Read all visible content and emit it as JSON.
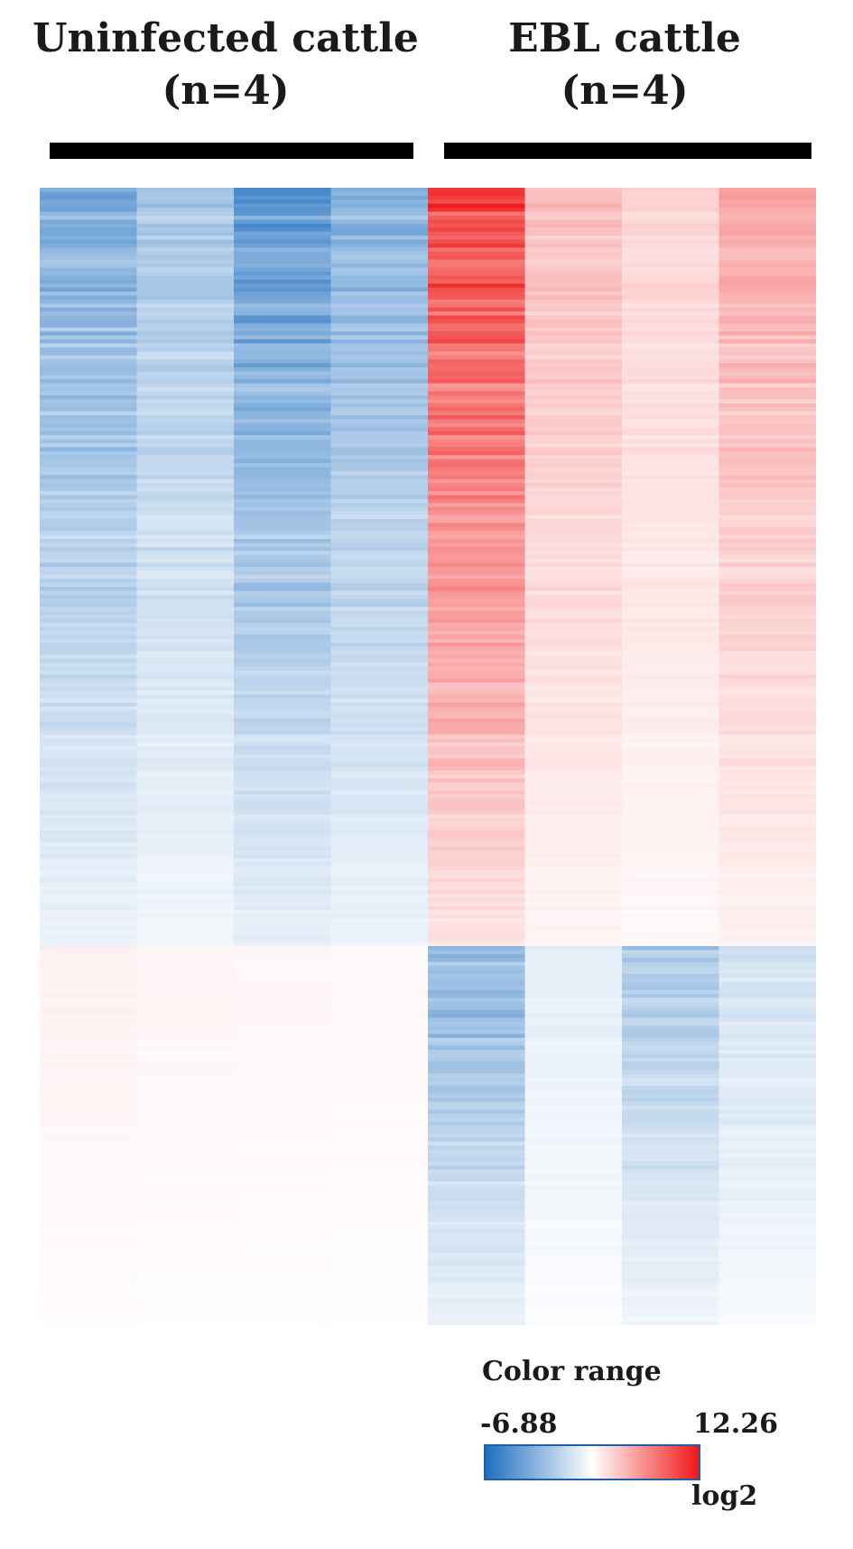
{
  "chart_data": {
    "type": "heatmap",
    "groups": [
      {
        "label_line1": "Uninfected cattle",
        "label_line2": "(n=4)",
        "columns": 4
      },
      {
        "label_line1": "EBL cattle",
        "label_line2": "(n=4)",
        "columns": 4
      }
    ],
    "clusters": [
      {
        "rows": 190,
        "column_means": [
          -3.8,
          -2.6,
          -4.6,
          -3.5,
          9.5,
          3.4,
          2.2,
          4.3
        ]
      },
      {
        "rows": 95,
        "column_means": [
          0.8,
          0.6,
          0.5,
          0.4,
          -3.5,
          -0.8,
          -2.6,
          -1.4
        ]
      }
    ],
    "color_scale": {
      "title": "Color range",
      "min": -6.88,
      "max": 12.26,
      "min_label": "-6.88",
      "max_label": "12.26",
      "unit": "log2",
      "low_color": "#1f6fc0",
      "mid_color": "#ffffff",
      "high_color": "#f01818"
    }
  }
}
